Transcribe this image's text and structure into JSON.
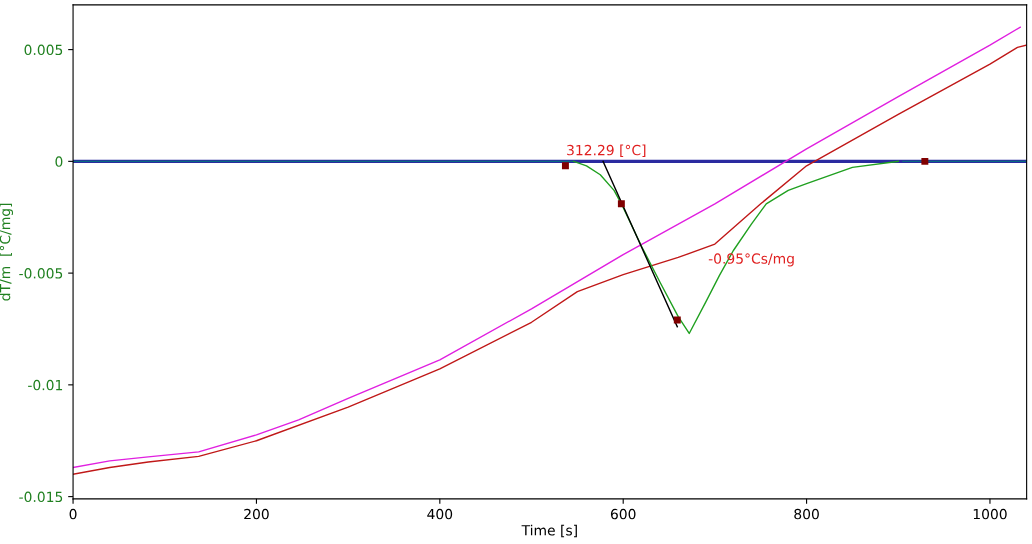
{
  "chart_data": {
    "type": "line",
    "xlabel": "Time [s]",
    "ylabel": "dT/m  [°C/mg]",
    "xlim": [
      0,
      1040
    ],
    "xticks": [
      0,
      200,
      400,
      600,
      800,
      1000
    ],
    "ylim": [
      -0.0151,
      0.007
    ],
    "yticks": [
      -0.015,
      -0.01,
      -0.005,
      0,
      0.005
    ],
    "grid": false,
    "legend": false,
    "series": [
      {
        "color": "#2a2aa0",
        "x": [
          0,
          1040
        ],
        "values": [
          0,
          0
        ]
      },
      {
        "color": "#0b6a80",
        "x": [
          0,
          546,
          547,
          905,
          1040
        ],
        "values": [
          0,
          0,
          null,
          0,
          0
        ]
      },
      {
        "color": "#e020e0",
        "x": [
          0,
          40,
          82,
          137,
          200,
          246,
          300,
          400,
          500,
          600,
          700,
          800,
          900,
          1000,
          1033
        ],
        "values": [
          -0.0137,
          -0.0134,
          -0.01322,
          -0.013,
          -0.01224,
          -0.01157,
          -0.0106,
          -0.00888,
          -0.0066,
          -0.00417,
          -0.0019,
          0.00056,
          0.0029,
          0.0052,
          0.006
        ]
      },
      {
        "color": "#c01818",
        "x": [
          0,
          40,
          82,
          137,
          200,
          300,
          400,
          500,
          550,
          600,
          660,
          700,
          750,
          800,
          900,
          1000,
          1030,
          1040
        ],
        "values": [
          -0.014,
          -0.0137,
          -0.01345,
          -0.0132,
          -0.0125,
          -0.011,
          -0.00928,
          -0.0072,
          -0.00583,
          -0.00507,
          -0.0043,
          -0.0037,
          -0.0019,
          -0.0002,
          0.0021,
          0.00435,
          0.0051,
          0.0052
        ]
      },
      {
        "color": "#20a020",
        "x": [
          546,
          560,
          575,
          590,
          598,
          620,
          640,
          660,
          672,
          690,
          705,
          720,
          740,
          756,
          780,
          800,
          850,
          900
        ],
        "values": [
          0,
          -0.0002,
          -0.0006,
          -0.0013,
          -0.0019,
          -0.0038,
          -0.0054,
          -0.00695,
          -0.0077,
          -0.0063,
          -0.0051,
          -0.004,
          -0.0028,
          -0.0019,
          -0.0013,
          -0.001,
          -0.00027,
          0
        ]
      },
      {
        "color": "#000000",
        "x": [
          578,
          659
        ],
        "values": [
          0,
          -0.0074
        ]
      },
      {
        "type": "scatter",
        "marker": "square",
        "color": "#800000",
        "x": [
          537,
          598,
          659,
          929
        ],
        "values": [
          -0.0002,
          -0.0019,
          -0.0071,
          0
        ]
      }
    ],
    "annotations": [
      "312.29 [°C]",
      "-0.95°Cs/mg"
    ]
  }
}
